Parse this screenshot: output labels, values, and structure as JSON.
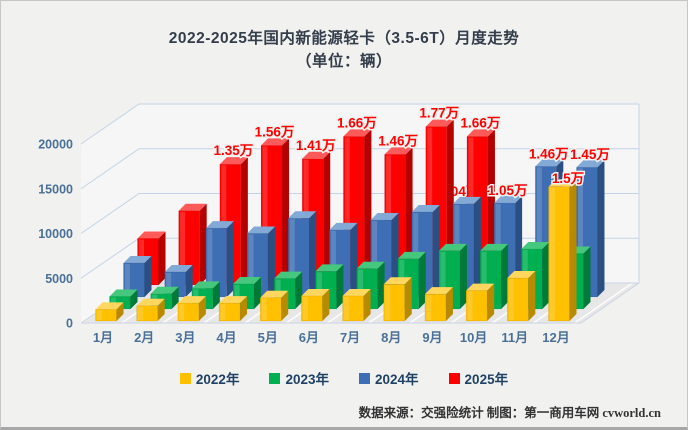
{
  "title": {
    "line1": "2022-2025年国内新能源轻卡（3.5-6T）月度走势",
    "line2": "（单位：辆）"
  },
  "footer": {
    "source": "数据来源：交强险统计 制图：第一商用车网 cvworld.cn"
  },
  "legend": [
    {
      "label": "2022年",
      "color": "#FFC000"
    },
    {
      "label": "2023年",
      "color": "#00B050"
    },
    {
      "label": "2024年",
      "color": "#3E6FB4"
    },
    {
      "label": "2025年",
      "color": "#FE0000"
    }
  ],
  "chart_data": {
    "type": "bar",
    "subtype": "3d-column",
    "title": "2022-2025年国内新能源轻卡（3.5-6T）月度走势（单位：辆）",
    "categories": [
      "1月",
      "2月",
      "3月",
      "4月",
      "5月",
      "6月",
      "7月",
      "8月",
      "9月",
      "10月",
      "11月",
      "12月"
    ],
    "ylim": [
      0,
      20000
    ],
    "yticks": [
      0,
      5000,
      10000,
      15000,
      20000
    ],
    "grid": true,
    "legend_position": "bottom",
    "label_color": "#FE0000",
    "axis_text_color": "#4a7097",
    "series": [
      {
        "name": "2022年",
        "colors": {
          "face": "#FFC000",
          "top": "#FFD75E",
          "side": "#B88A00"
        },
        "values": [
          1300,
          1700,
          2000,
          2000,
          2600,
          2800,
          2800,
          4100,
          3000,
          3400,
          4800,
          15000
        ],
        "labels": [
          null,
          null,
          null,
          null,
          null,
          null,
          null,
          null,
          null,
          null,
          null,
          "1.5万"
        ]
      },
      {
        "name": "2023年",
        "colors": {
          "face": "#00B050",
          "top": "#45C77E",
          "side": "#007A38"
        },
        "values": [
          1400,
          1700,
          2300,
          2800,
          3400,
          4200,
          4500,
          5600,
          6500,
          6500,
          6700,
          6200
        ],
        "labels": [
          null,
          null,
          null,
          null,
          null,
          null,
          null,
          null,
          null,
          null,
          null,
          null
        ]
      },
      {
        "name": "2024年",
        "colors": {
          "face": "#3E6FB4",
          "top": "#83A9D6",
          "side": "#2B4F83"
        },
        "values": [
          3800,
          2800,
          7700,
          7100,
          8800,
          7500,
          8600,
          9500,
          10400,
          10500,
          14600,
          14500
        ],
        "labels": [
          null,
          null,
          null,
          null,
          null,
          null,
          null,
          null,
          "1.04万",
          "1.05万",
          "1.46万",
          "1.45万"
        ]
      },
      {
        "name": "2025年",
        "colors": {
          "face": "#FE0000",
          "top": "#FF5A5A",
          "side": "#B50000"
        },
        "values": [
          5200,
          8300,
          13500,
          15600,
          14100,
          16600,
          14600,
          17700,
          16600,
          null,
          null,
          null
        ],
        "labels": [
          null,
          null,
          "1.35万",
          "1.56万",
          "1.41万",
          "1.66万",
          "1.46万",
          "1.77万",
          "1.66万",
          null,
          null,
          null
        ]
      }
    ]
  }
}
